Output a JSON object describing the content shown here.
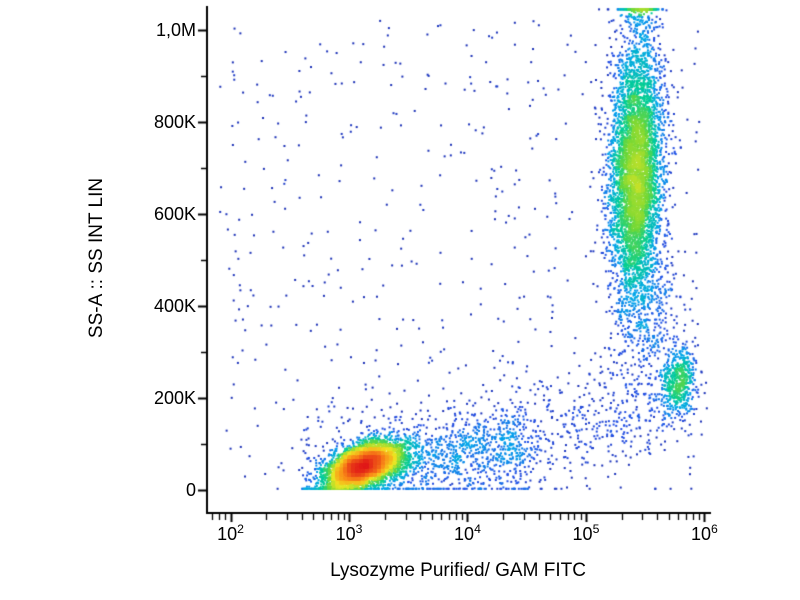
{
  "chart_data": {
    "type": "scatter",
    "subtype": "flow-cytometry-pseudocolor-density-dot-plot",
    "title": "",
    "xlabel": "Lysozyme Purified/ GAM FITC",
    "ylabel": "SS-A :: SS INT LIN",
    "x_scale": "log10",
    "x_range_log10": [
      1.81,
      6.03
    ],
    "y_range": [
      -48000,
      1048000
    ],
    "grid": false,
    "legend": "none",
    "background_color": "#ffffff",
    "axis_color": "#000000",
    "x_ticks": [
      {
        "exp": 2,
        "value": 100,
        "label": "10^2"
      },
      {
        "exp": 3,
        "value": 1000,
        "label": "10^3"
      },
      {
        "exp": 4,
        "value": 10000,
        "label": "10^4"
      },
      {
        "exp": 5,
        "value": 100000,
        "label": "10^5"
      },
      {
        "exp": 6,
        "value": 1000000,
        "label": "10^6"
      }
    ],
    "y_ticks": [
      {
        "value": 0,
        "label": "0"
      },
      {
        "value": 200000,
        "label": "200K"
      },
      {
        "value": 400000,
        "label": "400K"
      },
      {
        "value": 600000,
        "label": "600K"
      },
      {
        "value": 800000,
        "label": "800K"
      },
      {
        "value": 1000000,
        "label": "1,0M"
      }
    ],
    "seed": 42,
    "point_size": 2,
    "colormap": {
      "name": "density-jet",
      "stops": [
        {
          "t": 0.0,
          "rgb": [
            25,
            35,
            160
          ]
        },
        {
          "t": 0.17,
          "rgb": [
            35,
            80,
            230
          ]
        },
        {
          "t": 0.34,
          "rgb": [
            0,
            165,
            235
          ]
        },
        {
          "t": 0.48,
          "rgb": [
            0,
            205,
            150
          ]
        },
        {
          "t": 0.6,
          "rgb": [
            110,
            215,
            55
          ]
        },
        {
          "t": 0.74,
          "rgb": [
            240,
            230,
            35
          ]
        },
        {
          "t": 0.87,
          "rgb": [
            250,
            140,
            25
          ]
        },
        {
          "t": 1.0,
          "rgb": [
            225,
            25,
            25
          ]
        }
      ]
    },
    "populations": [
      {
        "name": "population-bottom-left-main",
        "type": "gauss",
        "n": 5200,
        "x_log_mean": 3.12,
        "x_log_sd": 0.16,
        "y_mean": 52000,
        "y_sd": 26000,
        "rho": 0.5
      },
      {
        "name": "population-bottom-left-tail",
        "type": "band",
        "n": 700,
        "x_log_min": 3.3,
        "x_log_max": 4.45,
        "y_start": 55000,
        "y_end": 95000,
        "y_sd": 38000
      },
      {
        "name": "population-top-right-tall",
        "type": "gauss",
        "n": 5200,
        "x_log_mean": 5.42,
        "x_log_sd": 0.11,
        "y_mean": 690000,
        "y_sd": 140000,
        "rho": 0.1
      },
      {
        "name": "population-top-edge-pileup",
        "type": "gauss",
        "n": 260,
        "x_log_mean": 5.45,
        "x_log_sd": 0.08,
        "y_mean": 1060000,
        "y_sd": 60000,
        "rho": 0
      },
      {
        "name": "population-mid-right-small",
        "type": "gauss",
        "n": 520,
        "x_log_mean": 5.78,
        "x_log_sd": 0.075,
        "y_mean": 235000,
        "y_sd": 38000,
        "rho": 0.3
      },
      {
        "name": "bridge-band-low-right",
        "type": "band",
        "n": 450,
        "x_log_min": 4.3,
        "x_log_max": 5.9,
        "y_start": 90000,
        "y_end": 200000,
        "y_sd": 55000
      },
      {
        "name": "low-left-scatter",
        "type": "band",
        "n": 500,
        "x_log_min": 2.6,
        "x_log_max": 4.6,
        "y_start": 40000,
        "y_end": 110000,
        "y_sd": 85000
      },
      {
        "name": "between-right-populations",
        "type": "gauss",
        "n": 350,
        "x_log_mean": 5.55,
        "x_log_sd": 0.13,
        "y_mean": 380000,
        "y_sd": 95000,
        "rho": 0
      },
      {
        "name": "sparse-background",
        "type": "uniform",
        "n": 520,
        "x_log_min": 1.9,
        "x_log_max": 6.0,
        "y_min": 0,
        "y_max": 1020000
      }
    ]
  }
}
